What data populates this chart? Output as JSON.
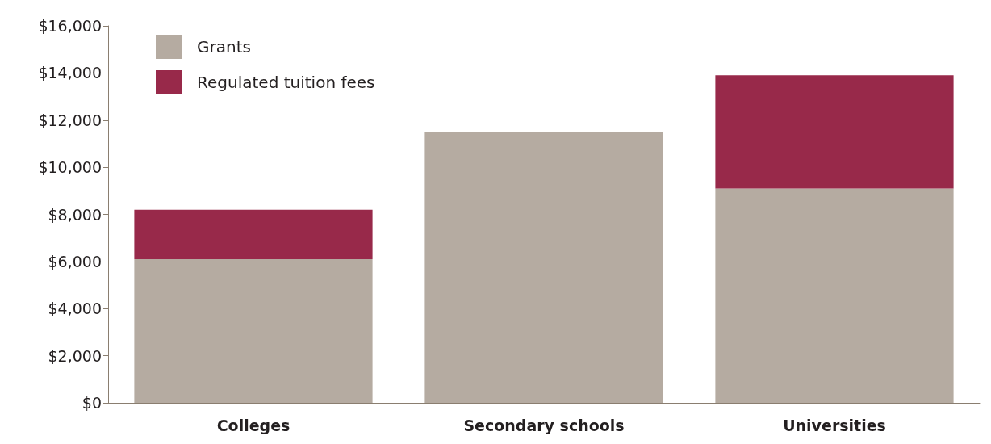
{
  "chart_data": {
    "type": "bar",
    "stacked": true,
    "categories": [
      "Colleges",
      "Secondary schools",
      "Universities"
    ],
    "series": [
      {
        "name": "Grants",
        "color": "#b5aba1",
        "values": [
          6100,
          11500,
          9100
        ]
      },
      {
        "name": "Regulated tuition fees",
        "color": "#98294a",
        "values": [
          2100,
          0,
          4800
        ]
      }
    ],
    "ylim": [
      0,
      16000
    ],
    "yticks": [
      {
        "value": 0,
        "label": "$0"
      },
      {
        "value": 2000,
        "label": "$2,000"
      },
      {
        "value": 4000,
        "label": "$4,000"
      },
      {
        "value": 6000,
        "label": "$6,000"
      },
      {
        "value": 8000,
        "label": "$8,000"
      },
      {
        "value": 10000,
        "label": "$10,000"
      },
      {
        "value": 12000,
        "label": "$12,000"
      },
      {
        "value": 14000,
        "label": "$14,000"
      },
      {
        "value": 16000,
        "label": "$16,000"
      }
    ],
    "grid": false,
    "legend": "top left"
  }
}
